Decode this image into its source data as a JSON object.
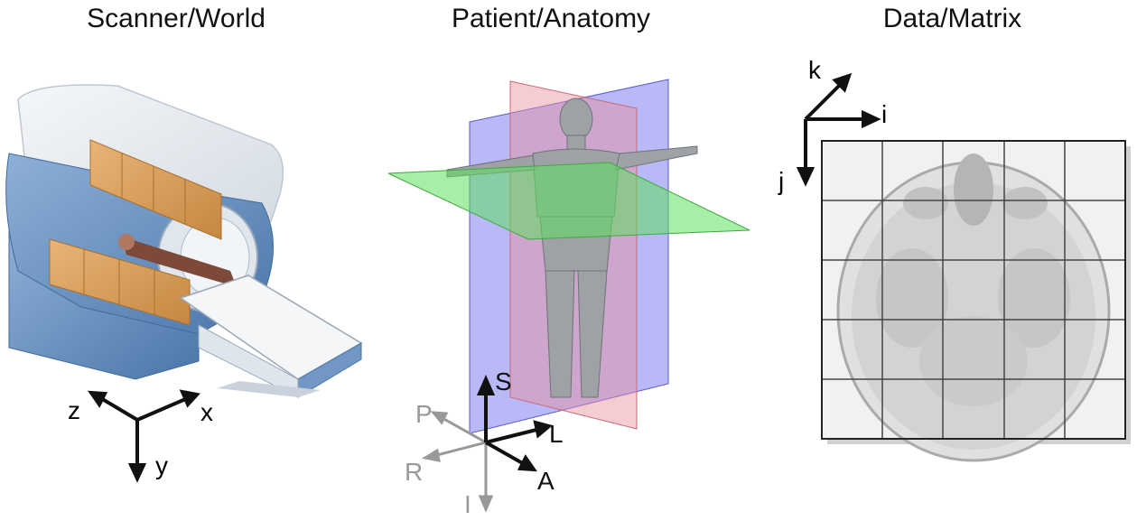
{
  "panels": {
    "scanner": {
      "title": "Scanner/World",
      "axes": {
        "x": "x",
        "y": "y",
        "z": "z"
      }
    },
    "anatomy": {
      "title": "Patient/Anatomy",
      "axes": {
        "superior": "S",
        "inferior": "I",
        "left": "L",
        "right": "R",
        "anterior": "A",
        "posterior": "P"
      }
    },
    "matrix": {
      "title": "Data/Matrix",
      "axes": {
        "i": "i",
        "j": "j",
        "k": "k"
      }
    }
  },
  "colors": {
    "scanner_shell": "#e4e9ef",
    "scanner_blue": "#5b86b8",
    "gradient_coil": "#d59a55",
    "sagittal_plane": "#e88f9a",
    "coronal_plane": "#7f7ff2",
    "axial_plane": "#5fe05f",
    "grid_line": "#444444"
  }
}
